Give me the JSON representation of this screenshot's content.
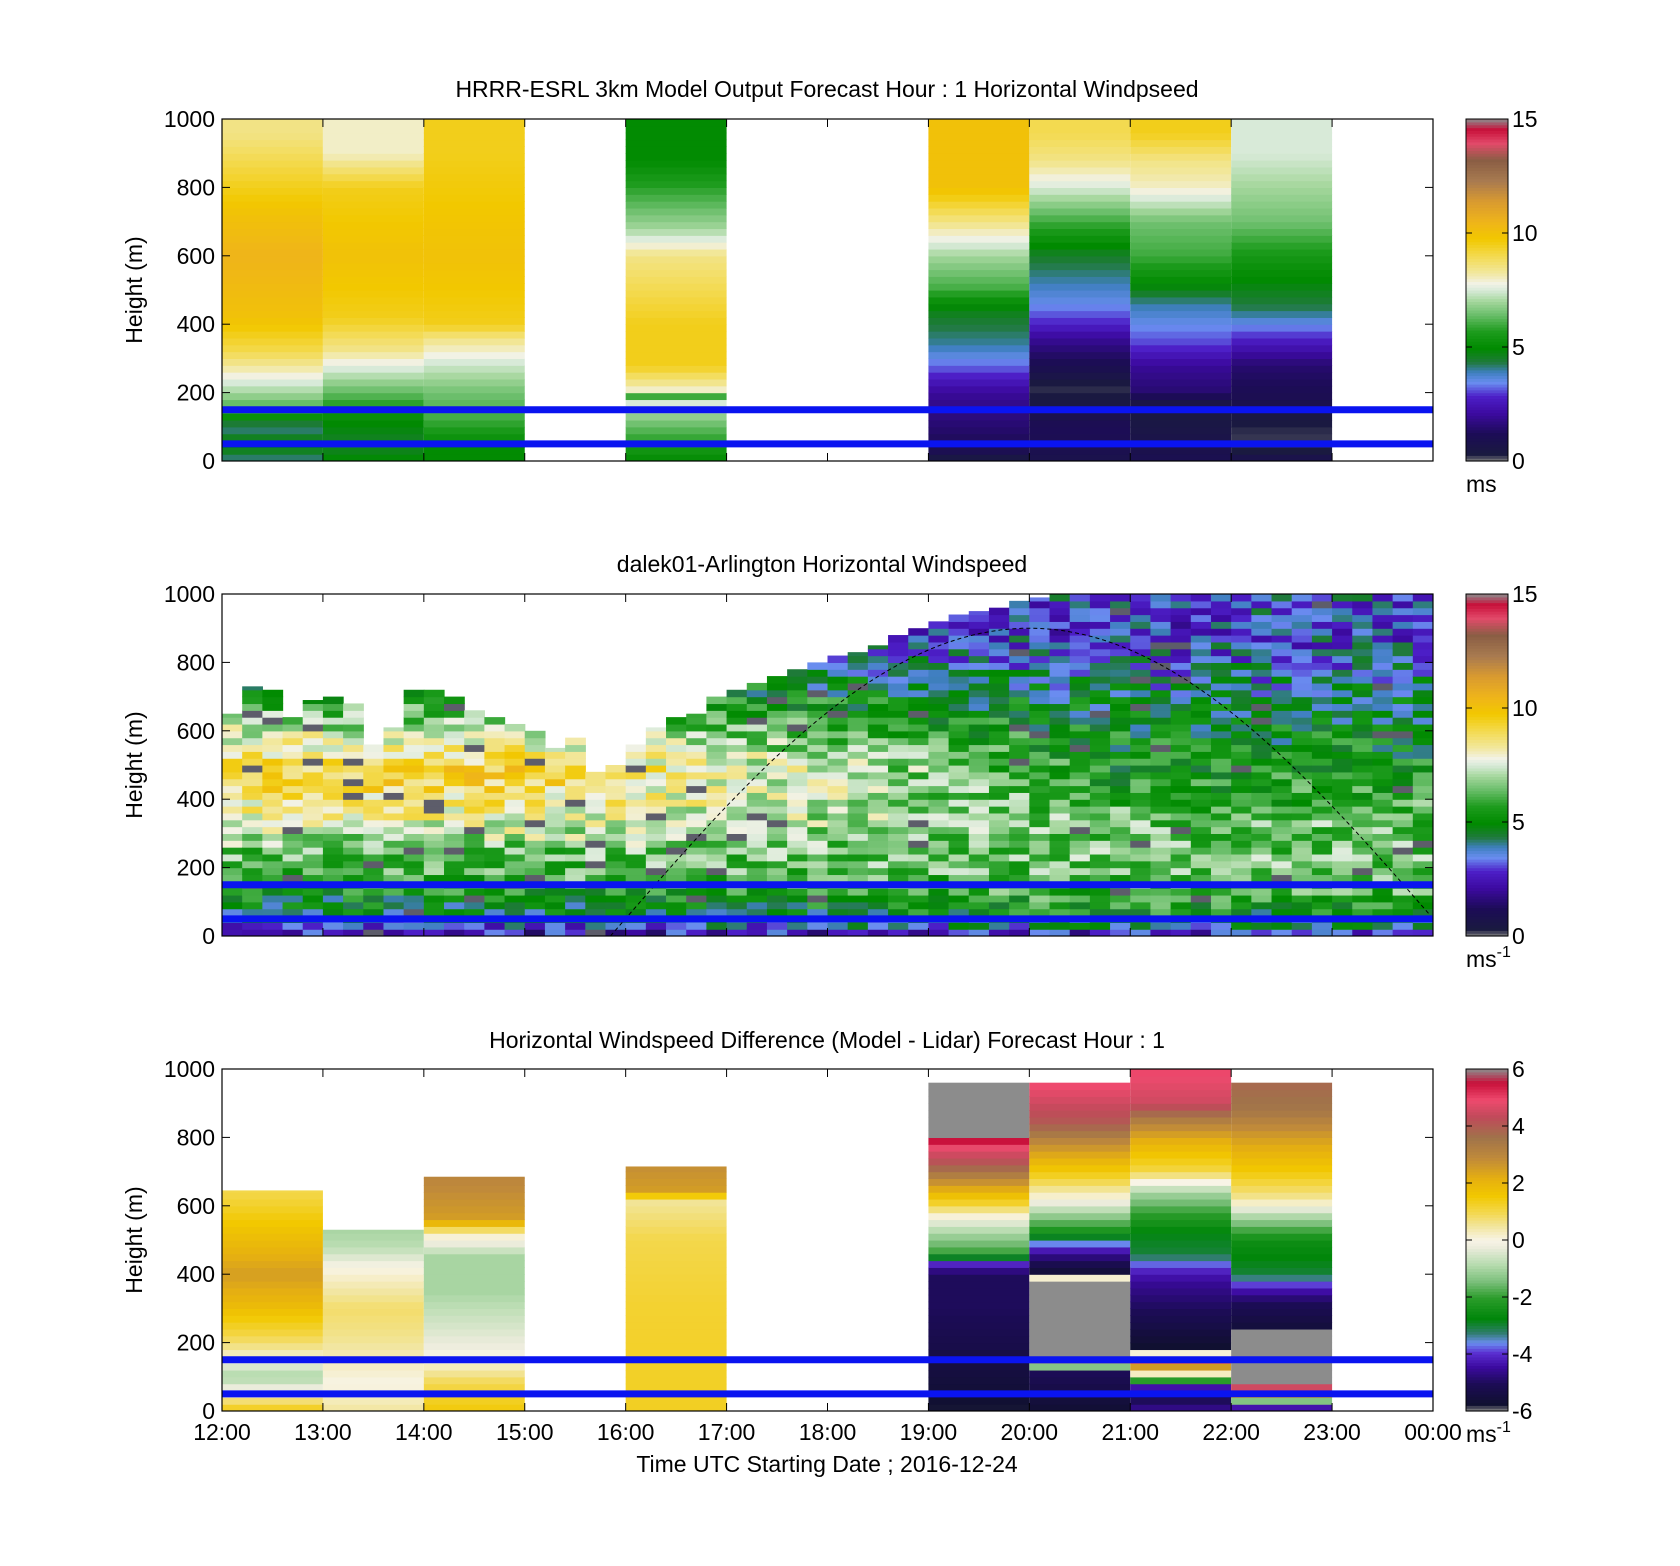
{
  "x_axis": {
    "tick_labels": [
      "12:00",
      "13:00",
      "14:00",
      "15:00",
      "16:00",
      "17:00",
      "18:00",
      "19:00",
      "20:00",
      "21:00",
      "22:00",
      "23:00",
      "00:00"
    ],
    "label": "Time UTC  Starting Date ; 2016-12-24"
  },
  "chart_data": [
    {
      "id": "model",
      "type": "heatmap",
      "title": "HRRR-ESRL 3km Model Output   Forecast Hour : 1 Horizontal Windpseed",
      "ylabel": "Height (m)",
      "xlim": [
        12,
        24
      ],
      "ylim": [
        0,
        1000
      ],
      "y_ticks": [
        0,
        200,
        400,
        600,
        800,
        1000
      ],
      "hlines": [
        50,
        150
      ],
      "colorbar": {
        "min": 0,
        "max": 15,
        "ticks": [
          0,
          5,
          10,
          15
        ],
        "unit": "ms",
        "unit_sup": ""
      },
      "cells": [
        {
          "x0": 12,
          "x1": 13,
          "levels": [
            [
              0,
              4
            ],
            [
              50,
              5
            ],
            [
              100,
              4
            ],
            [
              150,
              6
            ],
            [
              200,
              7
            ],
            [
              260,
              8
            ],
            [
              320,
              9
            ],
            [
              420,
              10
            ],
            [
              600,
              10.5
            ],
            [
              720,
              10
            ],
            [
              880,
              9
            ],
            [
              960,
              8.5
            ]
          ]
        },
        {
          "x0": 13,
          "x1": 14,
          "levels": [
            [
              0,
              5
            ],
            [
              50,
              4.5
            ],
            [
              120,
              5
            ],
            [
              180,
              6
            ],
            [
              240,
              7
            ],
            [
              330,
              8.5
            ],
            [
              420,
              9.5
            ],
            [
              600,
              10
            ],
            [
              800,
              9.5
            ],
            [
              900,
              8
            ]
          ]
        },
        {
          "x0": 14,
          "x1": 15,
          "levels": [
            [
              0,
              5
            ],
            [
              50,
              5
            ],
            [
              120,
              6
            ],
            [
              200,
              6.5
            ],
            [
              290,
              7.5
            ],
            [
              360,
              8.5
            ],
            [
              400,
              9.5
            ],
            [
              600,
              10
            ],
            [
              900,
              9.5
            ]
          ]
        },
        {
          "x0": 16,
          "x1": 17,
          "levels": [
            [
              0,
              5
            ],
            [
              40,
              5.5
            ],
            [
              110,
              6.5
            ],
            [
              170,
              7.5
            ],
            [
              190,
              6
            ],
            [
              210,
              8
            ],
            [
              280,
              9.5
            ],
            [
              400,
              9.5
            ],
            [
              600,
              8.5
            ],
            [
              680,
              7
            ],
            [
              780,
              6
            ],
            [
              880,
              5
            ]
          ]
        },
        {
          "x0": 19,
          "x1": 20,
          "levels": [
            [
              0,
              0.2
            ],
            [
              25,
              1
            ],
            [
              100,
              1.5
            ],
            [
              200,
              2
            ],
            [
              260,
              3
            ],
            [
              340,
              4
            ],
            [
              420,
              4.5
            ],
            [
              460,
              5
            ],
            [
              500,
              6
            ],
            [
              600,
              7
            ],
            [
              700,
              8.5
            ],
            [
              800,
              10
            ],
            [
              900,
              10
            ]
          ]
        },
        {
          "x0": 20,
          "x1": 21,
          "levels": [
            [
              0,
              0.8
            ],
            [
              100,
              1.2
            ],
            [
              160,
              0.5
            ],
            [
              220,
              0.2
            ],
            [
              260,
              0.8
            ],
            [
              320,
              1.5
            ],
            [
              360,
              2
            ],
            [
              400,
              2.8
            ],
            [
              460,
              3.5
            ],
            [
              600,
              4.5
            ],
            [
              700,
              6
            ],
            [
              800,
              7.5
            ],
            [
              880,
              8.5
            ],
            [
              960,
              9
            ]
          ]
        },
        {
          "x0": 21,
          "x1": 22,
          "levels": [
            [
              0,
              1
            ],
            [
              60,
              0.7
            ],
            [
              160,
              0.3
            ],
            [
              200,
              1.5
            ],
            [
              280,
              2
            ],
            [
              340,
              3
            ],
            [
              400,
              3.5
            ],
            [
              460,
              4
            ],
            [
              520,
              5
            ],
            [
              600,
              6
            ],
            [
              700,
              6.5
            ],
            [
              800,
              8
            ],
            [
              880,
              8.5
            ],
            [
              960,
              9.5
            ]
          ]
        },
        {
          "x0": 22,
          "x1": 23,
          "levels": [
            [
              0,
              1
            ],
            [
              30,
              0.3
            ],
            [
              80,
              0.2
            ],
            [
              140,
              0.5
            ],
            [
              180,
              1
            ],
            [
              280,
              1.5
            ],
            [
              340,
              2.5
            ],
            [
              400,
              3.5
            ],
            [
              440,
              4.2
            ],
            [
              600,
              5.5
            ],
            [
              700,
              6.5
            ],
            [
              800,
              7
            ],
            [
              900,
              7.5
            ]
          ]
        }
      ]
    },
    {
      "id": "lidar",
      "type": "heatmap",
      "title": "dalek01-Arlington  Horizontal Windspeed",
      "ylabel": "Height (m)",
      "xlim": [
        12,
        24
      ],
      "ylim": [
        0,
        1000
      ],
      "y_ticks": [
        0,
        200,
        400,
        600,
        800,
        1000
      ],
      "hlines": [
        50,
        150
      ],
      "colorbar": {
        "min": 0,
        "max": 15,
        "ticks": [
          0,
          5,
          10,
          15
        ],
        "unit": "ms",
        "unit_sup": "-1"
      },
      "column_tops": [
        650,
        730,
        720,
        640,
        690,
        700,
        680,
        560,
        610,
        720,
        720,
        700,
        660,
        640,
        620,
        600,
        550,
        580,
        480,
        500,
        560,
        610,
        640,
        650,
        700,
        720,
        740,
        760,
        780,
        800,
        820,
        830,
        850,
        880,
        900,
        920,
        940,
        950,
        960,
        980,
        990,
        1000,
        1000,
        1000,
        1000,
        1000,
        1000,
        1000,
        1000,
        1000,
        1000,
        1000,
        1000,
        1000,
        1000,
        1000,
        1000,
        1000,
        1000,
        1000
      ],
      "profile": [
        [
          0,
          2
        ],
        [
          25,
          3
        ],
        [
          60,
          4.5
        ],
        [
          100,
          4.8
        ],
        [
          160,
          6
        ],
        [
          250,
          6.5
        ],
        [
          350,
          8
        ],
        [
          480,
          9.5
        ],
        [
          620,
          7
        ],
        [
          750,
          5
        ],
        [
          900,
          3
        ],
        [
          1000,
          2
        ]
      ],
      "profile_late": [
        [
          0,
          2
        ],
        [
          25,
          4
        ],
        [
          60,
          5
        ],
        [
          120,
          6
        ],
        [
          200,
          6.5
        ],
        [
          320,
          6.5
        ],
        [
          450,
          5.5
        ],
        [
          600,
          5
        ],
        [
          750,
          4
        ],
        [
          900,
          3
        ],
        [
          1000,
          3.5
        ]
      ],
      "curve": {
        "x_start": 15.85,
        "x_peak": 20.0,
        "y_peak": 900,
        "x_end": 24.0
      }
    },
    {
      "id": "diff",
      "type": "heatmap",
      "title": "Horizontal Windspeed Difference (Model - Lidar) Forecast Hour : 1",
      "ylabel": "Height (m)",
      "xlim": [
        12,
        24
      ],
      "ylim": [
        0,
        1000
      ],
      "y_ticks": [
        0,
        200,
        400,
        600,
        800,
        1000
      ],
      "hlines": [
        50,
        150
      ],
      "colorbar": {
        "min": -6,
        "max": 6,
        "ticks": [
          -6,
          -4,
          -2,
          0,
          2,
          4,
          6
        ],
        "unit": "ms",
        "unit_sup": "-1"
      },
      "cells": [
        {
          "x0": 12,
          "x1": 13,
          "top": 645,
          "levels": [
            [
              0,
              1.5
            ],
            [
              40,
              0.5
            ],
            [
              100,
              -1
            ],
            [
              180,
              0.5
            ],
            [
              220,
              1
            ],
            [
              320,
              2
            ],
            [
              400,
              2.5
            ],
            [
              480,
              2
            ],
            [
              560,
              1.5
            ],
            [
              640,
              1
            ]
          ]
        },
        {
          "x0": 13,
          "x1": 14,
          "top": 530,
          "levels": [
            [
              0,
              0.5
            ],
            [
              80,
              0
            ],
            [
              150,
              0.3
            ],
            [
              220,
              0.6
            ],
            [
              300,
              0.8
            ],
            [
              420,
              0
            ],
            [
              480,
              -0.8
            ],
            [
              530,
              -1
            ]
          ]
        },
        {
          "x0": 14,
          "x1": 15,
          "top": 685,
          "levels": [
            [
              0,
              1.5
            ],
            [
              80,
              1
            ],
            [
              150,
              0
            ],
            [
              250,
              -0.5
            ],
            [
              350,
              -1
            ],
            [
              450,
              -1
            ],
            [
              520,
              0.3
            ],
            [
              560,
              2.5
            ],
            [
              680,
              3
            ]
          ]
        },
        {
          "x0": 16,
          "x1": 17,
          "top": 715,
          "levels": [
            [
              0,
              1.3
            ],
            [
              300,
              1.2
            ],
            [
              500,
              1
            ],
            [
              620,
              0.5
            ],
            [
              640,
              2.5
            ],
            [
              715,
              2.8
            ]
          ]
        },
        {
          "x0": 19,
          "x1": 20,
          "top": 960,
          "levels": [
            [
              0,
              -5.8
            ],
            [
              100,
              -5.5
            ],
            [
              300,
              -5
            ],
            [
              400,
              -5
            ],
            [
              440,
              -3.8
            ],
            [
              460,
              -2
            ],
            [
              520,
              -1
            ],
            [
              560,
              -0.2
            ],
            [
              600,
              1
            ],
            [
              660,
              2.5
            ],
            [
              720,
              4
            ],
            [
              780,
              5
            ],
            [
              800,
              6
            ],
            [
              960,
              6
            ]
          ]
        },
        {
          "x0": 20,
          "x1": 21,
          "top": 960,
          "levels": [
            [
              0,
              -5.7
            ],
            [
              120,
              -5
            ],
            [
              150,
              6
            ],
            [
              380,
              6
            ],
            [
              400,
              -5.7
            ],
            [
              440,
              -5
            ],
            [
              480,
              -4
            ],
            [
              520,
              -2.5
            ],
            [
              580,
              -1
            ],
            [
              620,
              0
            ],
            [
              700,
              1.5
            ],
            [
              780,
              2.8
            ],
            [
              840,
              4
            ],
            [
              900,
              4.5
            ],
            [
              960,
              5
            ]
          ]
        },
        {
          "x0": 21,
          "x1": 22,
          "top": 1000,
          "levels": [
            [
              0,
              -4.5
            ],
            [
              60,
              -5.5
            ],
            [
              160,
              6
            ],
            [
              180,
              -5.8
            ],
            [
              300,
              -5
            ],
            [
              380,
              -4.5
            ],
            [
              420,
              -4
            ],
            [
              460,
              -3
            ],
            [
              520,
              -2.8
            ],
            [
              580,
              -2
            ],
            [
              640,
              -1
            ],
            [
              700,
              1
            ],
            [
              780,
              2
            ],
            [
              840,
              3
            ],
            [
              900,
              4.5
            ],
            [
              1000,
              5
            ]
          ]
        },
        {
          "x0": 22,
          "x1": 23,
          "top": 960,
          "levels": [
            [
              0,
              -5.8
            ],
            [
              80,
              6
            ],
            [
              240,
              6
            ],
            [
              250,
              -5.5
            ],
            [
              320,
              -5
            ],
            [
              360,
              -4.2
            ],
            [
              400,
              -3
            ],
            [
              500,
              -2.5
            ],
            [
              560,
              -1.2
            ],
            [
              620,
              0.5
            ],
            [
              700,
              1.5
            ],
            [
              800,
              2.5
            ],
            [
              880,
              3.5
            ],
            [
              960,
              3.8
            ]
          ]
        }
      ]
    }
  ]
}
